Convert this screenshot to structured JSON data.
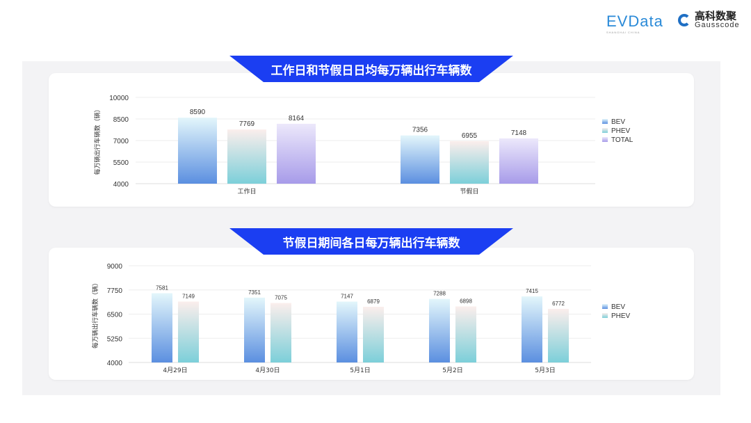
{
  "logos": {
    "evdata": "EVData",
    "evdata_sub": "SHANGHAI CHINA",
    "gauss_cn": "高科数聚",
    "gauss_en": "Gausscode"
  },
  "colors": {
    "banner": "#1b3ef2",
    "BEV": [
      "#e3f6fb",
      "#5b8fe0"
    ],
    "PHEV": [
      "#fbeeec",
      "#7ccfd9"
    ],
    "TOTAL": [
      "#ece8fb",
      "#a79be9"
    ]
  },
  "chart_data": [
    {
      "type": "bar",
      "title": "工作日和节假日日均每万辆出行车辆数",
      "ylabel": "每万辆出行车辆数（辆）",
      "ylim": [
        4000,
        10000
      ],
      "yticks": [
        4000,
        5500,
        7000,
        8500,
        10000
      ],
      "grid": true,
      "legend": "right",
      "categories": [
        "工作日",
        "节假日"
      ],
      "series": [
        {
          "name": "BEV",
          "values": [
            8590,
            7356
          ]
        },
        {
          "name": "PHEV",
          "values": [
            7769,
            6955
          ]
        },
        {
          "name": "TOTAL",
          "values": [
            8164,
            7148
          ]
        }
      ]
    },
    {
      "type": "bar",
      "title": "节假日期间各日每万辆出行车辆数",
      "ylabel": "每万辆出行车辆数（辆）",
      "ylim": [
        4000,
        9000
      ],
      "yticks": [
        4000,
        5250,
        6500,
        7750,
        9000
      ],
      "grid": true,
      "legend": "right",
      "categories": [
        "4月29日",
        "4月30日",
        "5月1日",
        "5月2日",
        "5月3日"
      ],
      "series": [
        {
          "name": "BEV",
          "values": [
            7581,
            7351,
            7147,
            7288,
            7415
          ]
        },
        {
          "name": "PHEV",
          "values": [
            7149,
            7075,
            6879,
            6898,
            6772
          ]
        }
      ]
    }
  ]
}
